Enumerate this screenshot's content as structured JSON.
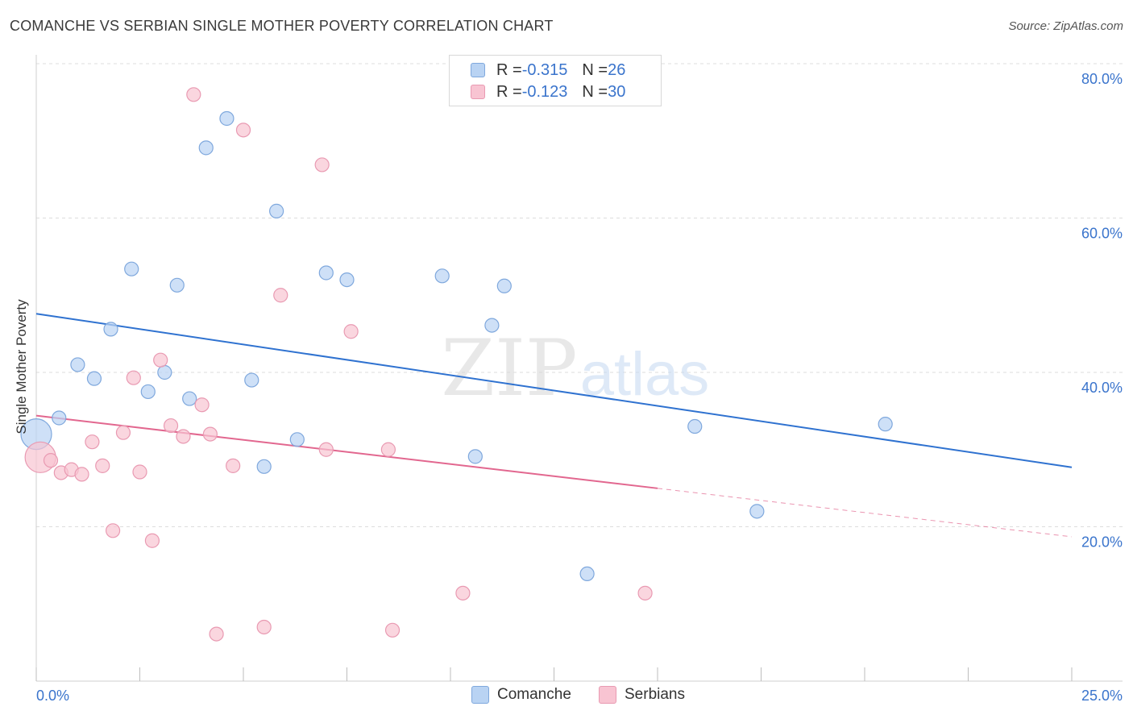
{
  "header": {
    "title": "COMANCHE VS SERBIAN SINGLE MOTHER POVERTY CORRELATION CHART",
    "source": "Source: ZipAtlas.com"
  },
  "colors": {
    "comanche_fill": "#b9d3f3",
    "comanche_stroke": "#7fa8dd",
    "comanche_line": "#2f72d0",
    "serbians_fill": "#f8c4d2",
    "serbians_stroke": "#e99ab2",
    "serbians_line": "#e2678f",
    "axis_label": "#3a74cc",
    "grid": "#dddddd"
  },
  "legend_top": {
    "rows": [
      {
        "r_label": "R = ",
        "r_value": "-0.315",
        "n_label": "N = ",
        "n_value": "26"
      },
      {
        "r_label": "R = ",
        "r_value": "-0.123",
        "n_label": "N = ",
        "n_value": "30"
      }
    ]
  },
  "legend_bottom": {
    "items": [
      {
        "label": "Comanche"
      },
      {
        "label": "Serbians"
      }
    ]
  },
  "watermark": {
    "zip": "ZIP",
    "atlas": "atlas"
  },
  "chart_data": {
    "type": "scatter",
    "title": "COMANCHE VS SERBIAN SINGLE MOTHER POVERTY CORRELATION CHART",
    "xlabel": "",
    "ylabel": "Single Mother Poverty",
    "xlim": [
      0,
      25
    ],
    "ylim": [
      0,
      80
    ],
    "x_tick_labels": [
      "0.0%",
      "25.0%"
    ],
    "y_ticks": [
      20,
      40,
      60,
      80
    ],
    "y_tick_labels": [
      "20.0%",
      "40.0%",
      "60.0%",
      "80.0%"
    ],
    "grid": "horizontal dashed",
    "legend_placement": "top-center and bottom",
    "series": [
      {
        "name": "Comanche",
        "r": -0.315,
        "n": 26,
        "trend": {
          "x": [
            0,
            25
          ],
          "y": [
            47.6,
            27.7
          ],
          "dashed_from": null
        },
        "points": [
          [
            0.0,
            32.0,
            "large"
          ],
          [
            0.55,
            34.1
          ],
          [
            1.0,
            41.0
          ],
          [
            1.4,
            39.2
          ],
          [
            1.8,
            45.6
          ],
          [
            2.3,
            53.4
          ],
          [
            2.7,
            37.5
          ],
          [
            3.1,
            40.0
          ],
          [
            3.4,
            51.3
          ],
          [
            3.7,
            36.6
          ],
          [
            4.1,
            69.1
          ],
          [
            4.6,
            72.9
          ],
          [
            5.2,
            39.0
          ],
          [
            5.5,
            27.8
          ],
          [
            5.8,
            60.9
          ],
          [
            6.3,
            31.3
          ],
          [
            7.0,
            52.9
          ],
          [
            7.5,
            52.0
          ],
          [
            9.8,
            52.5
          ],
          [
            10.6,
            29.1
          ],
          [
            11.0,
            46.1
          ],
          [
            11.3,
            51.2
          ],
          [
            13.3,
            13.9
          ],
          [
            15.9,
            33.0
          ],
          [
            17.4,
            22.0
          ],
          [
            20.5,
            33.3
          ]
        ]
      },
      {
        "name": "Serbians",
        "r": -0.123,
        "n": 30,
        "trend": {
          "x": [
            0,
            25
          ],
          "y": [
            34.4,
            18.7
          ],
          "dashed_from": 15.0
        },
        "points": [
          [
            0.1,
            29.0,
            "large"
          ],
          [
            0.35,
            28.6
          ],
          [
            0.6,
            27.0
          ],
          [
            0.85,
            27.4
          ],
          [
            1.1,
            26.8
          ],
          [
            1.35,
            31.0
          ],
          [
            1.6,
            27.9
          ],
          [
            1.85,
            19.5
          ],
          [
            2.1,
            32.2
          ],
          [
            2.35,
            39.3
          ],
          [
            2.5,
            27.1
          ],
          [
            2.8,
            18.2
          ],
          [
            3.0,
            41.6
          ],
          [
            3.25,
            33.1
          ],
          [
            3.55,
            31.7
          ],
          [
            3.8,
            76.0
          ],
          [
            4.0,
            35.8
          ],
          [
            4.2,
            32.0
          ],
          [
            4.35,
            6.1
          ],
          [
            4.75,
            27.9
          ],
          [
            5.0,
            71.4
          ],
          [
            5.5,
            7.0
          ],
          [
            5.9,
            50.0
          ],
          [
            6.9,
            66.9
          ],
          [
            7.0,
            30.0
          ],
          [
            7.6,
            45.3
          ],
          [
            8.5,
            30.0
          ],
          [
            8.6,
            6.6
          ],
          [
            10.3,
            11.4
          ],
          [
            14.7,
            11.4
          ]
        ]
      }
    ]
  }
}
